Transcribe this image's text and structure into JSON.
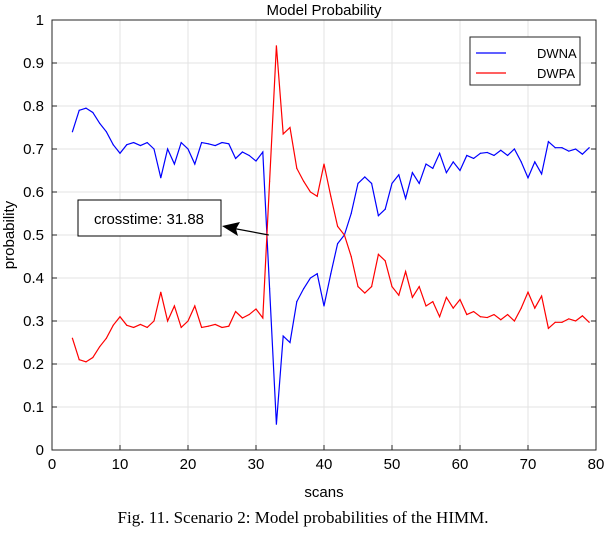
{
  "chart_data": {
    "type": "line",
    "title": "Model Probability",
    "xlabel": "scans",
    "ylabel": "probability",
    "xlim": [
      0,
      80
    ],
    "ylim": [
      0,
      1
    ],
    "xticks": [
      0,
      10,
      20,
      30,
      40,
      50,
      60,
      70,
      80
    ],
    "yticks": [
      0,
      0.1,
      0.2,
      0.3,
      0.4,
      0.5,
      0.6,
      0.7,
      0.8,
      0.9,
      1
    ],
    "grid": true,
    "legend_position": "top-right",
    "x_start": 3,
    "series": [
      {
        "name": "DWNA",
        "color": "#0000ff",
        "values": [
          0.74,
          0.79,
          0.795,
          0.785,
          0.76,
          0.74,
          0.71,
          0.69,
          0.71,
          0.715,
          0.708,
          0.715,
          0.7,
          0.633,
          0.7,
          0.665,
          0.715,
          0.7,
          0.665,
          0.715,
          0.712,
          0.708,
          0.715,
          0.712,
          0.678,
          0.693,
          0.685,
          0.672,
          0.693,
          0.375,
          0.06,
          0.265,
          0.25,
          0.345,
          0.375,
          0.4,
          0.41,
          0.335,
          0.41,
          0.48,
          0.5,
          0.55,
          0.62,
          0.635,
          0.62,
          0.545,
          0.56,
          0.62,
          0.64,
          0.585,
          0.645,
          0.62,
          0.665,
          0.655,
          0.69,
          0.645,
          0.67,
          0.65,
          0.685,
          0.678,
          0.69,
          0.692,
          0.685,
          0.697,
          0.685,
          0.7,
          0.67,
          0.633,
          0.67,
          0.642,
          0.717,
          0.703,
          0.703,
          0.695,
          0.7,
          0.688,
          0.703
        ]
      },
      {
        "name": "DWPA",
        "color": "#ff0000",
        "values": [
          0.26,
          0.21,
          0.205,
          0.215,
          0.24,
          0.26,
          0.29,
          0.31,
          0.29,
          0.285,
          0.292,
          0.285,
          0.3,
          0.367,
          0.3,
          0.335,
          0.285,
          0.3,
          0.335,
          0.285,
          0.288,
          0.292,
          0.285,
          0.288,
          0.322,
          0.307,
          0.315,
          0.328,
          0.307,
          0.625,
          0.94,
          0.735,
          0.75,
          0.655,
          0.625,
          0.6,
          0.59,
          0.665,
          0.59,
          0.52,
          0.5,
          0.45,
          0.38,
          0.365,
          0.38,
          0.455,
          0.44,
          0.38,
          0.36,
          0.415,
          0.355,
          0.38,
          0.335,
          0.345,
          0.31,
          0.355,
          0.33,
          0.35,
          0.315,
          0.322,
          0.31,
          0.308,
          0.315,
          0.303,
          0.315,
          0.3,
          0.33,
          0.367,
          0.33,
          0.358,
          0.283,
          0.297,
          0.297,
          0.305,
          0.3,
          0.312,
          0.297
        ]
      }
    ],
    "annotation": {
      "text": "crosstime: 31.88",
      "x": 31.88,
      "y": 0.5
    }
  },
  "caption": "Fig. 11.  Scenario 2: Model probabilities of the HIMM."
}
